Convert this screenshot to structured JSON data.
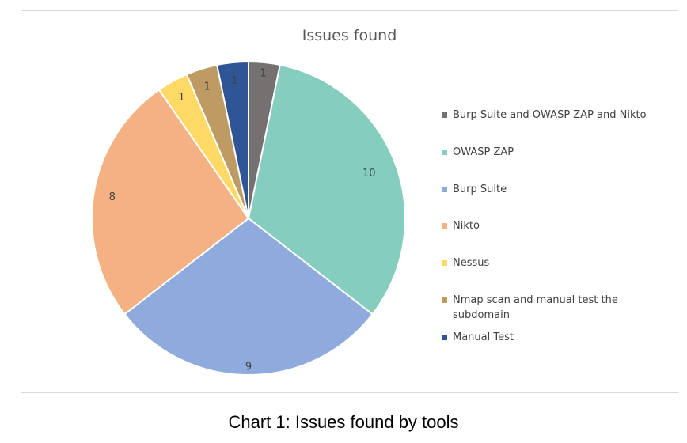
{
  "caption": "Chart 1: Issues found by tools",
  "chart_data": {
    "type": "pie",
    "title": "Issues found",
    "legend_position": "right",
    "data_labels": true,
    "slices": [
      {
        "name": "Burp Suite and OWASP ZAP and Nikto",
        "value": 1,
        "color": "#767171"
      },
      {
        "name": "OWASP ZAP",
        "value": 10,
        "color": "#85CDBE"
      },
      {
        "name": "Burp Suite",
        "value": 9,
        "color": "#8FAADC"
      },
      {
        "name": "Nikto",
        "value": 8,
        "color": "#F4B183"
      },
      {
        "name": "Nessus",
        "value": 1,
        "color": "#FFD966"
      },
      {
        "name": "Nmap scan and manual test the subdomain",
        "value": 1,
        "color": "#BF9B64"
      },
      {
        "name": "Manual Test",
        "value": 1,
        "color": "#2F5597"
      }
    ]
  }
}
